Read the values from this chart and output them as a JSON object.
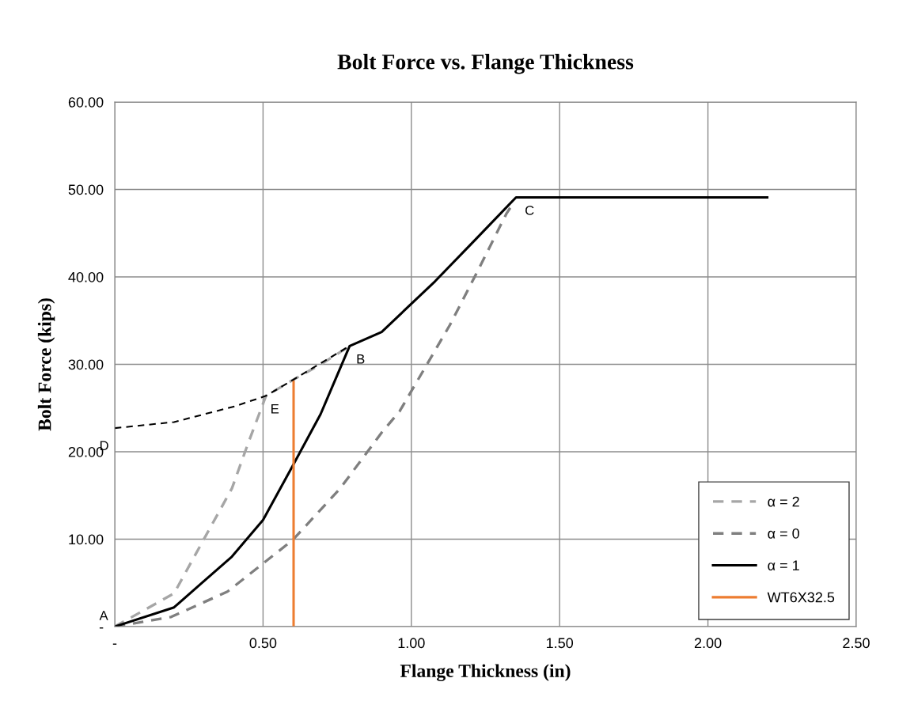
{
  "chart_data": {
    "type": "line",
    "title": "Bolt Force vs. Flange Thickness",
    "xlabel": "Flange Thickness (in)",
    "ylabel": "Bolt Force (kips)",
    "series": [
      {
        "name": "α = 2",
        "color": "#a6a6a6",
        "line_style": "dashed",
        "x": [
          0,
          0.2,
          0.307,
          0.395,
          0.45,
          0.51,
          0.6,
          0.7,
          0.792
        ],
        "values": [
          0,
          3.8,
          10.4,
          15.8,
          21,
          26.4,
          28.2,
          30.1,
          32.1
        ]
      },
      {
        "name": "α = 0",
        "color": "#7f7f7f",
        "line_style": "dashed",
        "x": [
          0,
          0.19,
          0.38,
          0.6,
          0.76,
          0.9,
          0.96,
          1.13,
          1.23,
          1.32,
          1.345
        ],
        "values": [
          0,
          1.1,
          4.0,
          9.9,
          15.8,
          22.2,
          24.6,
          34.5,
          41.1,
          47.2,
          48.5
        ]
      },
      {
        "name": "α = 1",
        "color": "#000000",
        "line_style": "solid",
        "x": [
          0,
          0.2,
          0.395,
          0.5,
          0.6,
          0.694,
          0.792,
          0.9,
          1.08,
          1.214,
          1.353,
          2.2
        ],
        "values": [
          0,
          2.2,
          8.0,
          12.2,
          18.4,
          24.3,
          32.1,
          33.7,
          39.5,
          44.2,
          49.1,
          49.1
        ]
      },
      {
        "name": "WT6X32.5",
        "color": "#ed7d31",
        "line_style": "solid",
        "x": [
          0.603,
          0.603
        ],
        "values": [
          0,
          28.0
        ]
      },
      {
        "color": "#000000",
        "line_style": "dashed",
        "x": [
          0,
          0.2,
          0.405,
          0.51,
          0.6,
          0.792
        ],
        "values": [
          22.7,
          23.4,
          25.2,
          26.4,
          28.2,
          32.1
        ]
      }
    ],
    "annotations": [
      {
        "text": "A",
        "x": 0,
        "y": 0
      },
      {
        "text": "B",
        "x": 0.792,
        "y": 32.1
      },
      {
        "text": "C",
        "x": 1.353,
        "y": 49.1
      },
      {
        "text": "D",
        "x": 0,
        "y": 22.7
      },
      {
        "text": "E",
        "x": 0.51,
        "y": 26.4
      }
    ],
    "xlim": [
      0,
      2.5
    ],
    "xticks": [
      {
        "value": 0,
        "label": "-"
      },
      {
        "value": 0.5,
        "label": "0.50"
      },
      {
        "value": 1.0,
        "label": "1.00"
      },
      {
        "value": 1.5,
        "label": "1.50"
      },
      {
        "value": 2.0,
        "label": "2.00"
      },
      {
        "value": 2.5,
        "label": "2.50"
      }
    ],
    "ylim": [
      0,
      60
    ],
    "yticks": [
      {
        "value": 0,
        "label": "-"
      },
      {
        "value": 10,
        "label": "10.00"
      },
      {
        "value": 20,
        "label": "20.00"
      },
      {
        "value": 30,
        "label": "30.00"
      },
      {
        "value": 40,
        "label": "40.00"
      },
      {
        "value": 50,
        "label": "50.00"
      },
      {
        "value": 60,
        "label": "60.00"
      }
    ],
    "grid": true,
    "legend": "bottom right"
  }
}
